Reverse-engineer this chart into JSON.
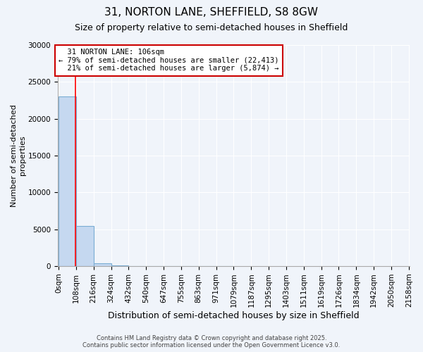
{
  "title": "31, NORTON LANE, SHEFFIELD, S8 8GW",
  "subtitle": "Size of property relative to semi-detached houses in Sheffield",
  "xlabel": "Distribution of semi-detached houses by size in Sheffield",
  "ylabel": "Number of semi-detached\nproperties",
  "property_label": "31 NORTON LANE: 106sqm",
  "pct_smaller": 79,
  "num_smaller": 22413,
  "pct_larger": 21,
  "num_larger": 5874,
  "bin_edges": [
    0,
    108,
    216,
    324,
    432,
    540,
    647,
    755,
    863,
    971,
    1079,
    1187,
    1295,
    1403,
    1511,
    1619,
    1726,
    1834,
    1942,
    2050,
    2158
  ],
  "bar_heights": [
    23000,
    5400,
    350,
    80,
    20,
    8,
    4,
    2,
    1,
    1,
    0,
    0,
    0,
    0,
    0,
    0,
    0,
    0,
    0,
    0
  ],
  "bar_color": "#c5d8f0",
  "bar_edge_color": "#7aadd4",
  "red_line_x": 106,
  "ylim": [
    0,
    30000
  ],
  "yticks": [
    0,
    5000,
    10000,
    15000,
    20000,
    25000,
    30000
  ],
  "annotation_box_color": "#ffffff",
  "annotation_box_edge_color": "#cc0000",
  "footer_text": "Contains HM Land Registry data © Crown copyright and database right 2025.\nContains public sector information licensed under the Open Government Licence v3.0.",
  "background_color": "#f0f4fa",
  "plot_bg_color": "#f0f4fa",
  "grid_color": "#ffffff",
  "title_fontsize": 11,
  "subtitle_fontsize": 9,
  "ylabel_fontsize": 8,
  "xlabel_fontsize": 9,
  "tick_fontsize": 7.5,
  "footer_fontsize": 6
}
